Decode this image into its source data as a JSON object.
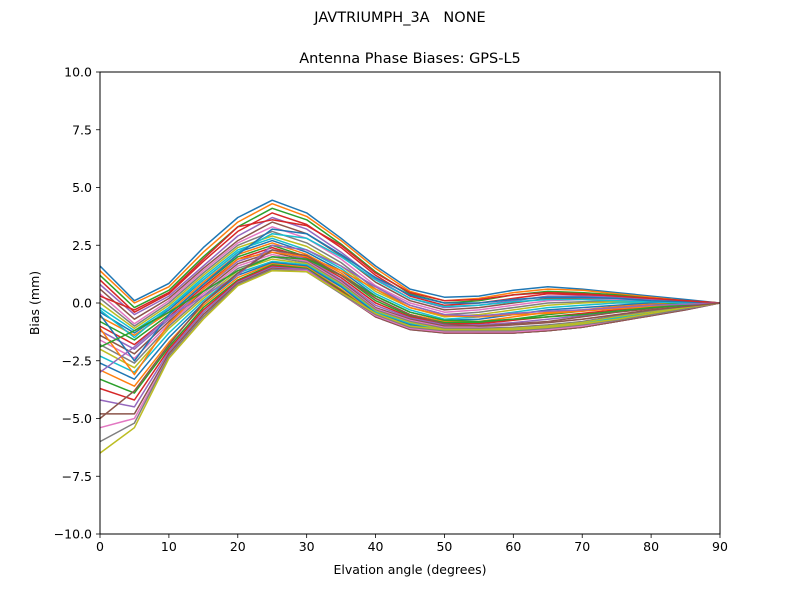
{
  "figure": {
    "suptitle": "JAVTRIUMPH_3A   NONE"
  },
  "chart_data": {
    "type": "line",
    "title": "Antenna Phase Biases: GPS-L5",
    "xlabel": "Elvation angle (degrees)",
    "ylabel": "Bias (mm)",
    "xlim": [
      0,
      90
    ],
    "ylim": [
      -10,
      10
    ],
    "xticks": [
      0,
      10,
      20,
      30,
      40,
      50,
      60,
      70,
      80,
      90
    ],
    "yticks": [
      -10.0,
      -7.5,
      -5.0,
      -2.5,
      0.0,
      2.5,
      5.0,
      7.5,
      10.0
    ],
    "ytick_labels": [
      "−10.0",
      "−7.5",
      "−5.0",
      "−2.5",
      "0.0",
      "2.5",
      "5.0",
      "7.5",
      "10.0"
    ],
    "grid": false,
    "legend": "none",
    "x": [
      0,
      5,
      10,
      15,
      20,
      25,
      30,
      35,
      40,
      45,
      50,
      55,
      60,
      65,
      70,
      75,
      80,
      85,
      90
    ],
    "colors": [
      "#1f77b4",
      "#ff7f0e",
      "#2ca02c",
      "#d62728",
      "#9467bd",
      "#8c564b",
      "#e377c2",
      "#7f7f7f",
      "#bcbd22",
      "#17becf"
    ],
    "series": [
      {
        "values": [
          1.6,
          0.1,
          0.85,
          2.4,
          3.7,
          4.45,
          3.9,
          2.8,
          1.6,
          0.6,
          0.25,
          0.3,
          0.55,
          0.7,
          0.6,
          0.45,
          0.3,
          0.15,
          0.0
        ]
      },
      {
        "values": [
          1.4,
          0.0,
          0.7,
          2.2,
          3.5,
          4.3,
          3.75,
          2.7,
          1.5,
          0.5,
          0.1,
          0.2,
          0.45,
          0.6,
          0.55,
          0.4,
          0.25,
          0.1,
          0.0
        ]
      },
      {
        "values": [
          1.2,
          -0.2,
          0.55,
          2.0,
          3.3,
          4.1,
          3.6,
          2.55,
          1.35,
          0.4,
          0.0,
          0.1,
          0.35,
          0.5,
          0.45,
          0.35,
          0.2,
          0.1,
          0.0
        ]
      },
      {
        "values": [
          1.0,
          -0.4,
          0.4,
          1.8,
          3.1,
          3.9,
          3.4,
          2.4,
          1.2,
          0.3,
          -0.1,
          0.0,
          0.2,
          0.4,
          0.35,
          0.3,
          0.2,
          0.1,
          0.0
        ]
      },
      {
        "values": [
          0.8,
          -0.5,
          0.3,
          1.6,
          2.9,
          3.7,
          3.2,
          2.2,
          1.05,
          0.2,
          -0.2,
          -0.1,
          0.1,
          0.3,
          0.3,
          0.25,
          0.15,
          0.05,
          0.0
        ]
      },
      {
        "values": [
          0.6,
          -0.7,
          0.2,
          1.5,
          2.7,
          3.5,
          3.0,
          2.05,
          0.9,
          0.1,
          -0.3,
          -0.2,
          0.0,
          0.2,
          0.2,
          0.2,
          0.1,
          0.05,
          0.0
        ]
      },
      {
        "values": [
          0.4,
          -0.9,
          0.1,
          1.4,
          2.6,
          3.3,
          2.8,
          1.9,
          0.75,
          0.0,
          -0.4,
          -0.3,
          -0.1,
          0.1,
          0.15,
          0.15,
          0.1,
          0.05,
          0.0
        ]
      },
      {
        "values": [
          0.2,
          -1.0,
          0.0,
          1.3,
          2.5,
          3.1,
          2.6,
          1.75,
          0.6,
          -0.1,
          -0.5,
          -0.4,
          -0.2,
          0.0,
          0.05,
          0.1,
          0.05,
          0.0,
          0.0
        ]
      },
      {
        "values": [
          0.0,
          -1.1,
          -0.1,
          1.2,
          2.4,
          2.9,
          2.45,
          1.6,
          0.5,
          -0.2,
          -0.6,
          -0.5,
          -0.3,
          -0.1,
          0.0,
          0.05,
          0.05,
          0.0,
          0.0
        ]
      },
      {
        "values": [
          -0.2,
          -1.2,
          -0.2,
          1.1,
          2.3,
          2.8,
          2.3,
          1.5,
          0.4,
          -0.3,
          -0.7,
          -0.6,
          -0.4,
          -0.2,
          -0.1,
          0.0,
          0.0,
          0.0,
          0.0
        ]
      },
      {
        "values": [
          -0.4,
          -1.3,
          -0.3,
          1.0,
          2.2,
          2.7,
          2.2,
          1.4,
          0.3,
          -0.4,
          -0.75,
          -0.7,
          -0.5,
          -0.3,
          -0.2,
          -0.1,
          0.0,
          0.0,
          0.0
        ]
      },
      {
        "values": [
          -0.6,
          -1.4,
          -0.4,
          0.9,
          2.1,
          2.6,
          2.1,
          1.3,
          0.2,
          -0.5,
          -0.8,
          -0.8,
          -0.6,
          -0.4,
          -0.3,
          -0.15,
          -0.05,
          0.0,
          0.0
        ]
      },
      {
        "values": [
          -0.8,
          -1.6,
          -0.5,
          0.8,
          2.0,
          2.5,
          2.0,
          1.2,
          0.1,
          -0.55,
          -0.85,
          -0.85,
          -0.7,
          -0.5,
          -0.35,
          -0.2,
          -0.1,
          0.0,
          0.0
        ]
      },
      {
        "values": [
          -1.0,
          -1.8,
          -0.6,
          0.7,
          1.9,
          2.4,
          1.95,
          1.1,
          0.0,
          -0.6,
          -0.9,
          -0.9,
          -0.75,
          -0.6,
          -0.45,
          -0.3,
          -0.15,
          -0.05,
          0.0
        ]
      },
      {
        "values": [
          -1.2,
          -2.0,
          -0.7,
          0.6,
          1.8,
          2.3,
          1.9,
          1.0,
          -0.1,
          -0.65,
          -0.95,
          -0.95,
          -0.85,
          -0.7,
          -0.55,
          -0.35,
          -0.2,
          -0.1,
          0.0
        ]
      },
      {
        "values": [
          -1.4,
          -2.2,
          -0.8,
          0.5,
          1.7,
          2.2,
          1.85,
          0.95,
          -0.2,
          -0.7,
          -1.0,
          -1.0,
          -0.9,
          -0.8,
          -0.6,
          -0.4,
          -0.25,
          -0.1,
          0.0
        ]
      },
      {
        "values": [
          -1.6,
          -2.4,
          -0.9,
          0.4,
          1.6,
          2.1,
          1.8,
          0.9,
          -0.25,
          -0.75,
          -1.05,
          -1.05,
          -0.95,
          -0.85,
          -0.7,
          -0.5,
          -0.3,
          -0.15,
          0.0
        ]
      },
      {
        "values": [
          -1.8,
          -2.6,
          -1.0,
          0.3,
          1.5,
          2.0,
          1.75,
          0.85,
          -0.3,
          -0.8,
          -1.1,
          -1.1,
          -1.05,
          -0.95,
          -0.8,
          -0.55,
          -0.35,
          -0.15,
          0.0
        ]
      },
      {
        "values": [
          -2.0,
          -2.8,
          -1.1,
          0.2,
          1.4,
          1.9,
          1.7,
          0.8,
          -0.35,
          -0.85,
          -1.15,
          -1.15,
          -1.1,
          -1.0,
          -0.85,
          -0.6,
          -0.4,
          -0.2,
          0.0
        ]
      },
      {
        "values": [
          -2.3,
          -3.0,
          -1.3,
          0.1,
          1.3,
          1.8,
          1.65,
          0.75,
          -0.4,
          -0.9,
          -1.2,
          -1.2,
          -1.15,
          -1.05,
          -0.9,
          -0.65,
          -0.45,
          -0.2,
          0.0
        ]
      },
      {
        "values": [
          -2.6,
          -3.3,
          -1.5,
          0.0,
          1.2,
          1.75,
          1.6,
          0.7,
          -0.45,
          -0.95,
          -1.2,
          -1.25,
          -1.2,
          -1.1,
          -0.95,
          -0.7,
          -0.45,
          -0.25,
          0.0
        ]
      },
      {
        "values": [
          -2.9,
          -3.6,
          -1.7,
          -0.1,
          1.1,
          1.7,
          1.55,
          0.6,
          -0.5,
          -1.0,
          -1.25,
          -1.3,
          -1.25,
          -1.15,
          -1.0,
          -0.75,
          -0.5,
          -0.25,
          0.0
        ]
      },
      {
        "values": [
          -3.3,
          -3.9,
          -1.9,
          -0.2,
          1.0,
          1.65,
          1.5,
          0.55,
          -0.55,
          -1.05,
          -1.25,
          -1.3,
          -1.3,
          -1.2,
          -1.05,
          -0.8,
          -0.5,
          -0.25,
          0.0
        ]
      },
      {
        "values": [
          -3.7,
          -4.2,
          -2.0,
          -0.3,
          0.95,
          1.6,
          1.45,
          0.5,
          -0.6,
          -1.1,
          -1.3,
          -1.3,
          -1.3,
          -1.2,
          -1.05,
          -0.8,
          -0.55,
          -0.25,
          0.0
        ]
      },
      {
        "values": [
          -4.2,
          -4.5,
          -2.1,
          -0.4,
          0.9,
          1.55,
          1.45,
          0.45,
          -0.6,
          -1.15,
          -1.3,
          -1.3,
          -1.3,
          -1.2,
          -1.05,
          -0.8,
          -0.55,
          -0.3,
          0.0
        ]
      },
      {
        "values": [
          -4.8,
          -4.8,
          -2.2,
          -0.5,
          0.85,
          1.5,
          1.4,
          0.4,
          -0.6,
          -1.15,
          -1.3,
          -1.3,
          -1.3,
          -1.2,
          -1.05,
          -0.8,
          -0.55,
          -0.3,
          0.0
        ]
      },
      {
        "values": [
          -5.4,
          -5.0,
          -2.3,
          -0.6,
          0.8,
          1.45,
          1.4,
          0.4,
          -0.55,
          -1.1,
          -1.25,
          -1.25,
          -1.25,
          -1.15,
          -1.0,
          -0.75,
          -0.5,
          -0.25,
          0.0
        ]
      },
      {
        "values": [
          -6.0,
          -5.2,
          -2.3,
          -0.6,
          0.8,
          1.45,
          1.35,
          0.4,
          -0.5,
          -1.05,
          -1.2,
          -1.2,
          -1.2,
          -1.1,
          -0.95,
          -0.75,
          -0.5,
          -0.25,
          0.0
        ]
      },
      {
        "values": [
          -6.5,
          -5.4,
          -2.4,
          -0.7,
          0.75,
          1.4,
          1.35,
          0.45,
          -0.45,
          -1.0,
          -1.15,
          -1.15,
          -1.15,
          -1.05,
          -0.9,
          -0.7,
          -0.45,
          -0.2,
          0.0
        ]
      },
      {
        "values": [
          -0.3,
          -1.5,
          -0.2,
          1.0,
          2.2,
          3.0,
          2.8,
          2.0,
          1.0,
          0.2,
          -0.15,
          -0.1,
          0.05,
          0.15,
          0.15,
          0.1,
          0.05,
          0.0,
          0.0
        ]
      },
      {
        "values": [
          -0.5,
          -2.5,
          -0.5,
          0.8,
          2.1,
          3.2,
          3.0,
          2.1,
          1.1,
          0.35,
          0.0,
          0.0,
          0.15,
          0.25,
          0.25,
          0.2,
          0.1,
          0.05,
          0.0
        ]
      },
      {
        "values": [
          -1.1,
          -3.1,
          -0.9,
          0.6,
          1.9,
          2.2,
          2.0,
          1.4,
          0.6,
          -0.2,
          -0.55,
          -0.6,
          -0.5,
          -0.45,
          -0.35,
          -0.25,
          -0.15,
          -0.05,
          0.0
        ]
      },
      {
        "values": [
          -1.9,
          -1.2,
          -0.4,
          0.5,
          1.4,
          2.0,
          1.9,
          1.2,
          0.3,
          -0.4,
          -0.75,
          -0.8,
          -0.7,
          -0.6,
          -0.5,
          -0.35,
          -0.2,
          -0.1,
          0.0
        ]
      },
      {
        "values": [
          0.3,
          -0.3,
          0.45,
          1.9,
          3.3,
          3.6,
          3.35,
          2.5,
          1.3,
          0.45,
          0.1,
          0.15,
          0.35,
          0.45,
          0.4,
          0.3,
          0.2,
          0.1,
          0.0
        ]
      },
      {
        "values": [
          -3.0,
          -1.9,
          -0.6,
          0.3,
          1.2,
          2.5,
          2.3,
          1.6,
          0.7,
          -0.1,
          -0.5,
          -0.55,
          -0.45,
          -0.35,
          -0.3,
          -0.2,
          -0.1,
          -0.05,
          0.0
        ]
      },
      {
        "values": [
          -5.0,
          -3.8,
          -1.8,
          0.0,
          1.3,
          2.3,
          2.05,
          1.2,
          0.2,
          -0.5,
          -0.9,
          -1.0,
          -0.95,
          -0.85,
          -0.7,
          -0.5,
          -0.3,
          -0.15,
          0.0
        ]
      }
    ]
  }
}
